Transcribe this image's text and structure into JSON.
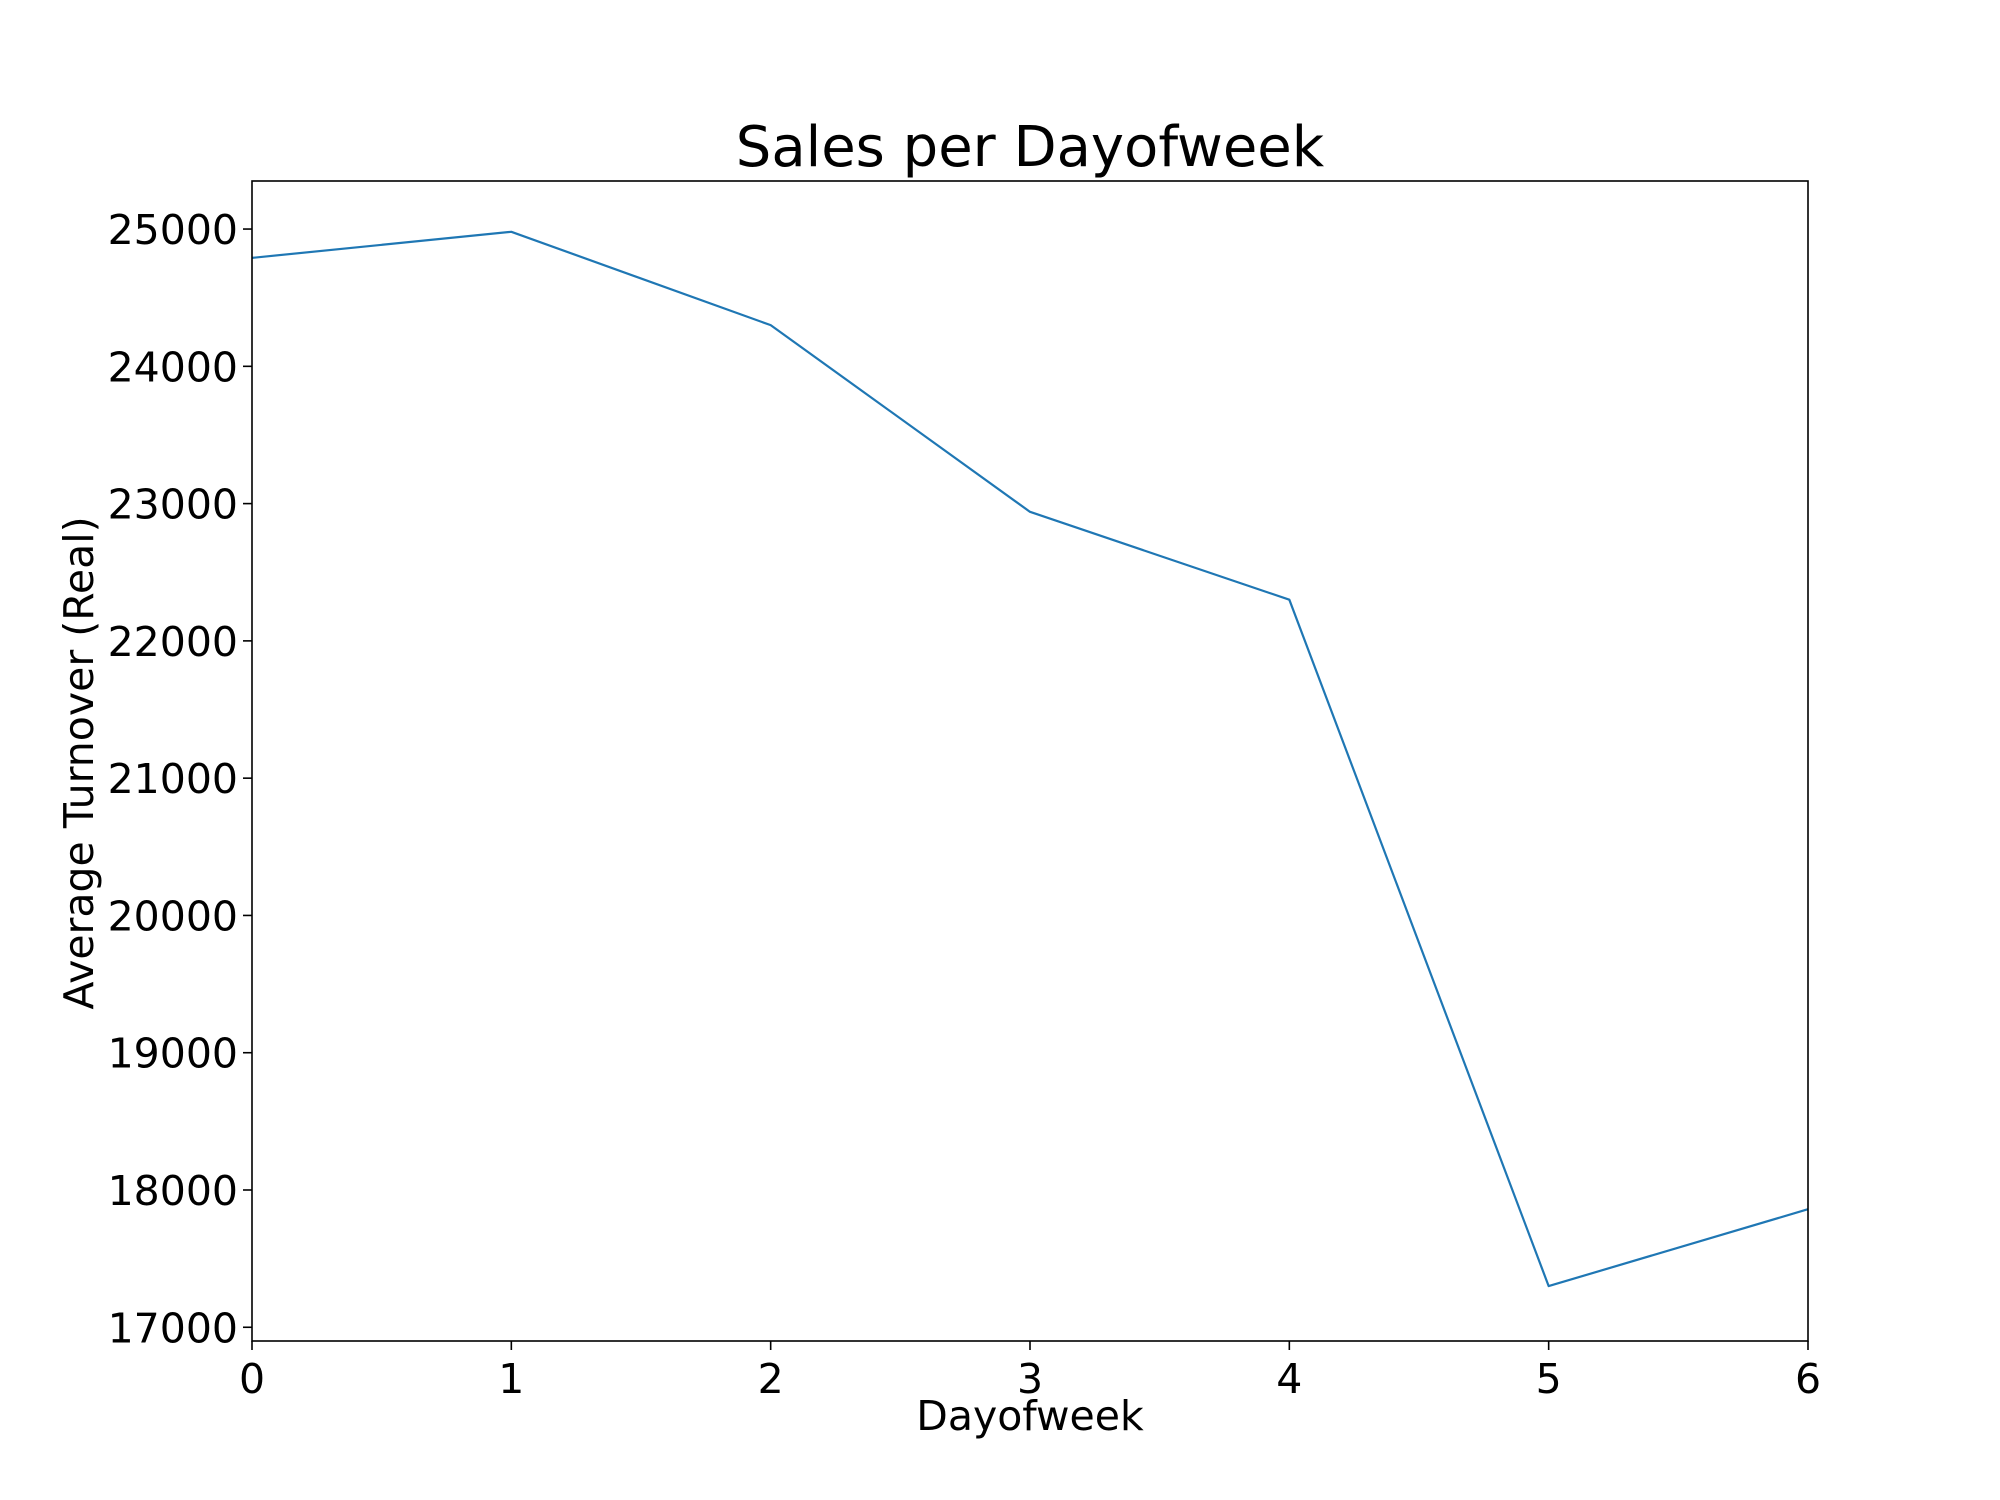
{
  "chart_data": {
    "type": "line",
    "title": "Sales per Dayofweek",
    "xlabel": "Dayofweek",
    "ylabel": "Average Turnover (Real)",
    "x": [
      0,
      1,
      2,
      3,
      4,
      5,
      6
    ],
    "series": [
      {
        "values": [
          24790,
          24980,
          24300,
          22940,
          22300,
          17300,
          17860
        ],
        "color": "#1f77b4"
      }
    ],
    "xlim": [
      0,
      6
    ],
    "ylim": [
      16900,
      25350
    ],
    "xticks": [
      0,
      1,
      2,
      3,
      4,
      5,
      6
    ],
    "yticks": [
      17000,
      18000,
      19000,
      20000,
      21000,
      22000,
      23000,
      24000,
      25000
    ],
    "grid": false,
    "legend": "none"
  }
}
